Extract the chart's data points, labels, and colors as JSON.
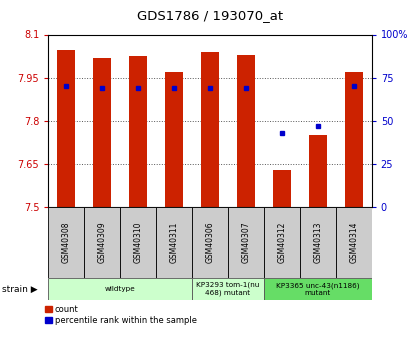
{
  "title": "GDS1786 / 193070_at",
  "samples": [
    "GSM40308",
    "GSM40309",
    "GSM40310",
    "GSM40311",
    "GSM40306",
    "GSM40307",
    "GSM40312",
    "GSM40313",
    "GSM40314"
  ],
  "counts": [
    8.045,
    8.02,
    8.025,
    7.97,
    8.04,
    8.03,
    7.63,
    7.75,
    7.97
  ],
  "percentile_ranks": [
    70,
    69,
    69,
    69,
    69,
    69,
    43,
    47,
    70
  ],
  "ylim_left": [
    7.5,
    8.1
  ],
  "ylim_right": [
    0,
    100
  ],
  "yticks_left": [
    7.5,
    7.65,
    7.8,
    7.95,
    8.1
  ],
  "ytick_labels_left": [
    "7.5",
    "7.65",
    "7.8",
    "7.95",
    "8.1"
  ],
  "yticks_right": [
    0,
    25,
    50,
    75,
    100
  ],
  "ytick_labels_right": [
    "0",
    "25",
    "50",
    "75",
    "100%"
  ],
  "bar_color": "#cc2200",
  "dot_color": "#0000cc",
  "bar_bottom": 7.5,
  "groups": [
    {
      "label": "wildtype",
      "start": 0,
      "end": 4,
      "color": "#ccffcc"
    },
    {
      "label": "KP3293 tom-1(nu\n468) mutant",
      "start": 4,
      "end": 6,
      "color": "#ccffcc"
    },
    {
      "label": "KP3365 unc-43(n1186)\nmutant",
      "start": 6,
      "end": 9,
      "color": "#66dd66"
    }
  ],
  "sample_box_color": "#cccccc",
  "grid_color": "#555555",
  "left_color": "#cc0000",
  "right_color": "#0000cc"
}
